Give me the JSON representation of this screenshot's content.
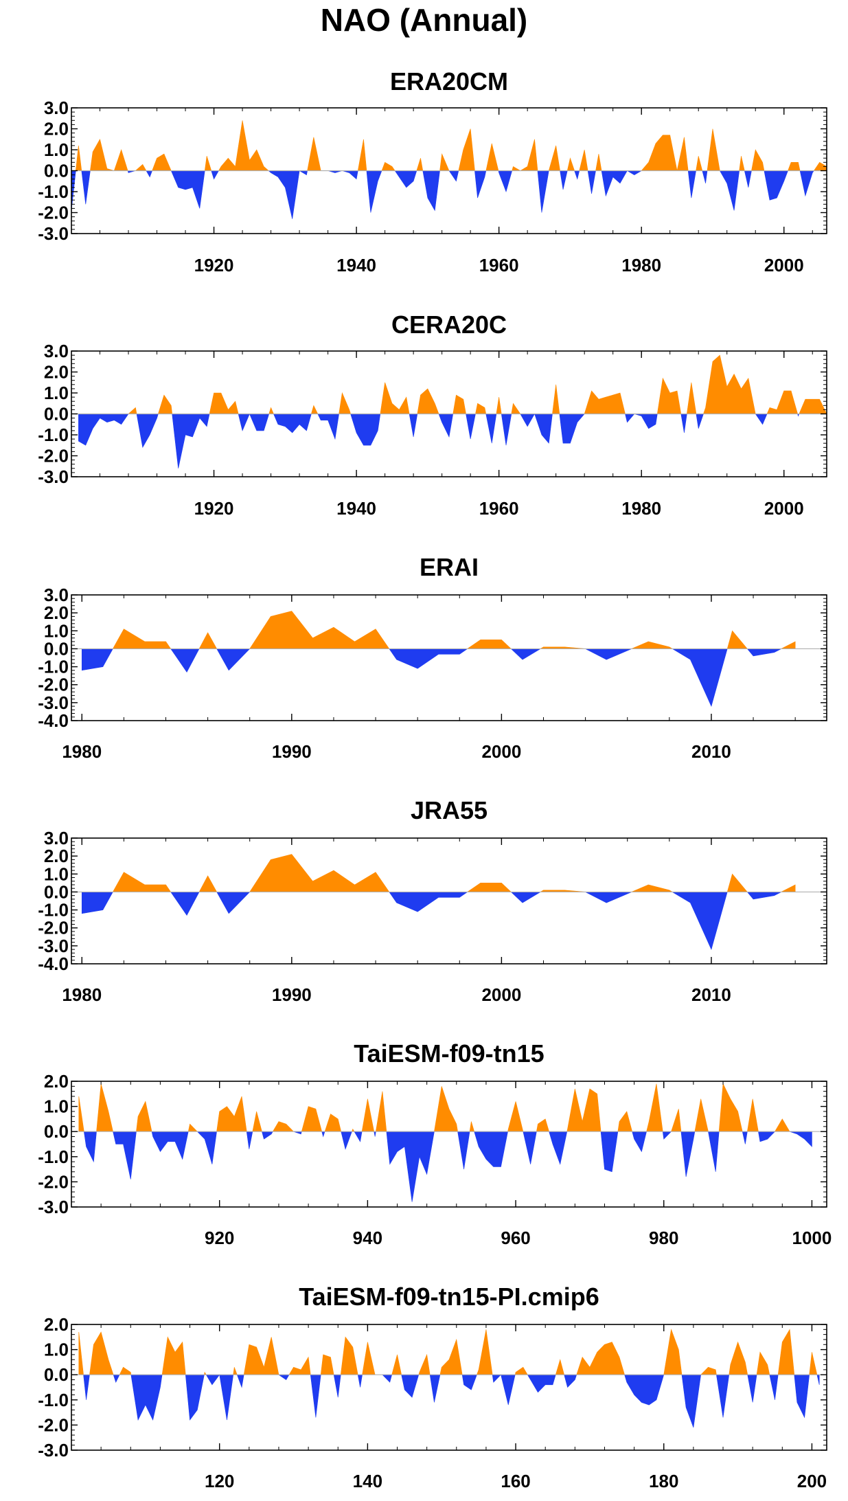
{
  "figure": {
    "title": "NAO (Annual)"
  },
  "colors": {
    "positive": "#ff8c00",
    "negative": "#1f3cf0",
    "axis": "#000000"
  },
  "chart_data": [
    {
      "type": "area",
      "title": "ERA20CM",
      "x_start": 1900,
      "xlim": [
        1900,
        2006
      ],
      "ylim": [
        -3,
        3
      ],
      "yticks": [
        "3.0",
        "2.0",
        "1.0",
        "0.0",
        "-1.0",
        "-2.0",
        "-3.0"
      ],
      "xticks": [
        1920,
        1940,
        1960,
        1980,
        2000
      ],
      "values": [
        -1.9,
        1.2,
        -1.6,
        0.9,
        1.5,
        0.1,
        0.0,
        1.0,
        -0.1,
        0.0,
        0.3,
        -0.3,
        0.6,
        0.8,
        0.0,
        -0.8,
        -0.9,
        -0.8,
        -1.8,
        0.7,
        -0.4,
        0.2,
        0.6,
        0.2,
        2.4,
        0.5,
        1.0,
        0.2,
        -0.1,
        -0.3,
        -0.8,
        -2.3,
        0.0,
        -0.2,
        1.6,
        0.0,
        0.0,
        -0.1,
        0.0,
        -0.1,
        -0.4,
        1.5,
        -2.0,
        -0.5,
        0.4,
        0.2,
        -0.3,
        -0.8,
        -0.5,
        0.6,
        -1.3,
        -1.9,
        0.8,
        0.0,
        -0.5,
        1.0,
        2.0,
        -1.3,
        -0.3,
        1.3,
        -0.1,
        -1.0,
        0.2,
        0.0,
        0.2,
        1.5,
        -2.0,
        0.0,
        1.2,
        -0.9,
        0.6,
        -0.4,
        1.0,
        -1.1,
        0.8,
        -1.2,
        -0.3,
        -0.6,
        0.0,
        -0.2,
        0.0,
        0.4,
        1.3,
        1.7,
        1.7,
        0.0,
        1.6,
        -1.3,
        0.7,
        -0.6,
        2.0,
        0.0,
        -0.6,
        -1.9,
        0.7,
        -0.8,
        1.0,
        0.4,
        -1.4,
        -1.3,
        -0.5,
        0.4,
        0.4,
        -1.2,
        -0.1,
        0.4,
        0.2
      ]
    },
    {
      "type": "area",
      "title": "CERA20C",
      "x_start": 1901,
      "xlim": [
        1900,
        2006
      ],
      "ylim": [
        -3,
        3
      ],
      "yticks": [
        "3.0",
        "2.0",
        "1.0",
        "0.0",
        "-1.0",
        "-2.0",
        "-3.0"
      ],
      "xticks": [
        1920,
        1940,
        1960,
        1980,
        2000
      ],
      "values": [
        -1.3,
        -1.5,
        -0.7,
        -0.2,
        -0.4,
        -0.3,
        -0.5,
        0.0,
        0.3,
        -1.6,
        -1.0,
        -0.2,
        0.9,
        0.4,
        -2.6,
        -1.0,
        -1.1,
        -0.2,
        -0.6,
        1.0,
        1.0,
        0.2,
        0.6,
        -0.8,
        0.0,
        -0.8,
        -0.8,
        0.3,
        -0.5,
        -0.6,
        -0.9,
        -0.5,
        -0.8,
        0.4,
        -0.3,
        -0.3,
        -1.2,
        1.0,
        0.2,
        -0.9,
        -1.5,
        -1.5,
        -0.8,
        1.5,
        0.5,
        0.2,
        0.8,
        -1.1,
        0.9,
        1.2,
        0.5,
        -0.4,
        -1.1,
        0.9,
        0.7,
        -1.2,
        0.5,
        0.3,
        -1.4,
        0.8,
        -1.5,
        0.5,
        0.0,
        -0.6,
        0.0,
        -1.0,
        -1.4,
        1.4,
        -1.4,
        -1.4,
        -0.4,
        0.0,
        1.1,
        0.7,
        0.8,
        0.9,
        1.0,
        -0.4,
        0.0,
        -0.1,
        -0.7,
        -0.5,
        1.7,
        1.0,
        1.1,
        -0.9,
        1.5,
        -0.7,
        0.3,
        2.5,
        2.8,
        1.3,
        1.9,
        1.2,
        1.7,
        0.0,
        -0.5,
        0.3,
        0.2,
        1.1,
        1.1,
        -0.1,
        0.7,
        0.7,
        0.7,
        0.0
      ]
    },
    {
      "type": "area",
      "title": "ERAI",
      "x_start": 1980,
      "xlim": [
        1979.5,
        2015.5
      ],
      "ylim": [
        -4,
        3
      ],
      "yticks": [
        "3.0",
        "2.0",
        "1.0",
        "0.0",
        "-1.0",
        "-2.0",
        "-3.0",
        "-4.0"
      ],
      "xticks": [
        1980,
        1990,
        2000,
        2010
      ],
      "values": [
        -1.2,
        -1.0,
        1.1,
        0.4,
        0.4,
        -1.3,
        0.9,
        -1.2,
        0.0,
        1.8,
        2.1,
        0.6,
        1.2,
        0.4,
        1.1,
        -0.6,
        -1.1,
        -0.3,
        -0.3,
        0.5,
        0.5,
        -0.6,
        0.1,
        0.1,
        0.0,
        -0.6,
        -0.1,
        0.4,
        0.1,
        -0.6,
        -3.2,
        1.0,
        -0.4,
        -0.2,
        0.4
      ]
    },
    {
      "type": "area",
      "title": "JRA55",
      "x_start": 1980,
      "xlim": [
        1979.5,
        2015.5
      ],
      "ylim": [
        -4,
        3
      ],
      "yticks": [
        "3.0",
        "2.0",
        "1.0",
        "0.0",
        "-1.0",
        "-2.0",
        "-3.0",
        "-4.0"
      ],
      "xticks": [
        1980,
        1990,
        2000,
        2010
      ],
      "values": [
        -1.2,
        -1.0,
        1.1,
        0.4,
        0.4,
        -1.3,
        0.9,
        -1.2,
        0.0,
        1.8,
        2.1,
        0.6,
        1.2,
        0.4,
        1.1,
        -0.6,
        -1.1,
        -0.3,
        -0.3,
        0.5,
        0.5,
        -0.6,
        0.1,
        0.1,
        0.0,
        -0.6,
        -0.1,
        0.4,
        0.1,
        -0.6,
        -3.2,
        1.0,
        -0.4,
        -0.2,
        0.4
      ]
    },
    {
      "type": "area",
      "title": "TaiESM-f09-tn15",
      "x_start": 901,
      "xlim": [
        900,
        1002
      ],
      "ylim": [
        -3,
        2
      ],
      "yticks": [
        "2.0",
        "1.0",
        "0.0",
        "-1.0",
        "-2.0",
        "-3.0"
      ],
      "xticks": [
        920,
        940,
        960,
        980,
        1000
      ],
      "values": [
        1.4,
        -0.6,
        -1.2,
        1.9,
        0.8,
        -0.5,
        -0.5,
        -1.9,
        0.6,
        1.2,
        -0.2,
        -0.8,
        -0.4,
        -0.4,
        -1.1,
        0.3,
        0.0,
        -0.3,
        -1.3,
        0.8,
        1.0,
        0.6,
        1.4,
        -0.7,
        0.8,
        -0.3,
        -0.1,
        0.4,
        0.3,
        0.0,
        -0.1,
        1.0,
        0.9,
        -0.2,
        0.7,
        0.5,
        -0.7,
        0.1,
        -0.4,
        1.3,
        -0.2,
        1.6,
        -1.3,
        -0.8,
        -0.6,
        -2.8,
        -1.0,
        -1.7,
        0.0,
        1.8,
        0.9,
        0.3,
        -1.5,
        0.4,
        -0.6,
        -1.1,
        -1.4,
        -1.4,
        0.1,
        1.2,
        0.0,
        -1.3,
        0.3,
        0.5,
        -0.5,
        -1.3,
        0.1,
        1.7,
        0.4,
        1.7,
        1.5,
        -1.5,
        -1.6,
        0.4,
        0.8,
        -0.3,
        -0.8,
        0.4,
        1.9,
        -0.3,
        0.0,
        0.9,
        -1.8,
        -0.3,
        1.3,
        0.0,
        -1.6,
        1.9,
        1.3,
        0.8,
        -0.5,
        1.3,
        -0.4,
        -0.3,
        0.0,
        0.5,
        0.0,
        -0.1,
        -0.3,
        -0.6
      ]
    },
    {
      "type": "area",
      "title": "TaiESM-f09-tn15-PI.cmip6",
      "x_start": 101,
      "xlim": [
        100,
        202
      ],
      "ylim": [
        -3,
        2
      ],
      "yticks": [
        "2.0",
        "1.0",
        "0.0",
        "-1.0",
        "-2.0",
        "-3.0"
      ],
      "xticks": [
        120,
        140,
        160,
        180,
        200
      ],
      "values": [
        1.7,
        -1.0,
        1.2,
        1.7,
        0.6,
        -0.3,
        0.3,
        0.1,
        -1.8,
        -1.2,
        -1.8,
        -0.5,
        1.5,
        0.9,
        1.3,
        -1.8,
        -1.4,
        0.1,
        -0.4,
        0.0,
        -1.8,
        0.3,
        -0.5,
        1.2,
        1.1,
        0.3,
        1.5,
        0.0,
        -0.2,
        0.3,
        0.2,
        0.7,
        -1.7,
        0.8,
        0.7,
        -0.9,
        1.5,
        1.1,
        -0.5,
        1.3,
        0.0,
        0.0,
        -0.3,
        0.8,
        -0.6,
        -0.9,
        0.1,
        0.8,
        -1.1,
        0.3,
        0.6,
        1.4,
        -0.4,
        -0.6,
        0.2,
        1.8,
        -0.3,
        0.0,
        -1.2,
        0.1,
        0.3,
        -0.2,
        -0.7,
        -0.4,
        -0.4,
        0.6,
        -0.5,
        -0.2,
        0.7,
        0.3,
        0.9,
        1.2,
        1.3,
        0.7,
        -0.3,
        -0.8,
        -1.1,
        -1.2,
        -1.0,
        0.0,
        1.8,
        1.0,
        -1.3,
        -2.1,
        0.0,
        0.3,
        0.2,
        -1.7,
        0.4,
        1.3,
        0.5,
        -1.1,
        0.9,
        0.4,
        -1.0,
        1.3,
        1.8,
        -1.1,
        -1.7,
        0.9,
        -0.4
      ]
    }
  ]
}
